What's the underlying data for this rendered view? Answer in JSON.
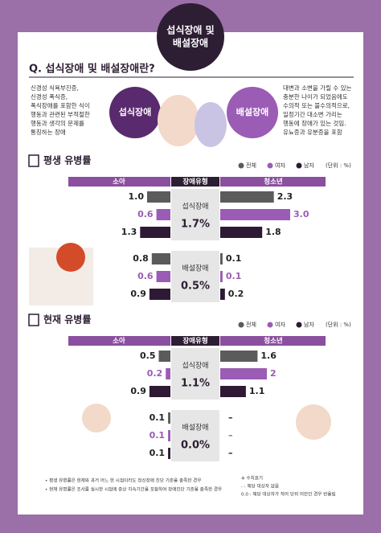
{
  "badge": {
    "lines": [
      "섭식장애 및",
      "배설장애"
    ]
  },
  "intro": {
    "question": "Q. 섭식장애 및 배설장애란?",
    "eating_label": "섭식장애",
    "eating_text": [
      "신경성 식욕부진증,",
      "신경성 폭식증,",
      "폭식장애를 포함한 식이",
      "행동과 관련된 부적절한",
      "행동과 생각의 문제를",
      "통칭하는 장애"
    ],
    "excretion_label": "배설장애",
    "excretion_text": [
      "대변과 소변을 가릴 수 있는",
      "충분한 나이가 되었음에도",
      "수의적 또는 불수의적으로,",
      "일정기간 대소변 가리는",
      "행동에 장애가 있는 것임.",
      "유뇨증과 유분증을 포함"
    ]
  },
  "legend": {
    "items": [
      {
        "name": "전체",
        "color": "#5b5b5b"
      },
      {
        "name": "여자",
        "color": "#9a5cb4"
      },
      {
        "name": "남자",
        "color": "#2e1a35"
      }
    ],
    "unit": "(단위 : %)"
  },
  "sections": [
    {
      "title": "평생 유병률",
      "header": {
        "child": "소아",
        "type": "장애유형",
        "teen": "청소년"
      },
      "groups": [
        {
          "name": "섭식장애",
          "total": 1.7,
          "total_label": "1.7%",
          "child": {
            "values": [
              1.0,
              0.6,
              1.3
            ],
            "value_labels": [
              "1.0",
              "0.6",
              "1.3"
            ]
          },
          "teen": {
            "values": [
              2.3,
              3.0,
              1.8
            ],
            "value_labels": [
              "2.3",
              "3.0",
              "1.8"
            ]
          }
        },
        {
          "name": "배설장애",
          "total": 0.5,
          "total_label": "0.5%",
          "child": {
            "values": [
              0.8,
              0.6,
              0.9
            ]
          },
          "teen": {
            "values": [
              0.1,
              0.1,
              0.2
            ]
          }
        }
      ]
    },
    {
      "title": "현재 유병률",
      "header": {
        "child": "소아",
        "type": "장애유형",
        "teen": "청소년"
      },
      "groups": [
        {
          "name": "섭식장애",
          "total": 1.1,
          "total_label": "1.1%",
          "child": {
            "values": [
              0.5,
              0.2,
              0.9
            ]
          },
          "teen": {
            "values": [
              1.6,
              2.0,
              1.1
            ]
          }
        },
        {
          "name": "배설장애",
          "total": 0,
          "total_label": "0.0%",
          "child": {
            "values": [
              0.1,
              0.1,
              0.1
            ]
          },
          "teen": {
            "values": [
              null,
              null,
              null
            ],
            "value_labels": [
              "–",
              "–",
              "–"
            ]
          }
        }
      ]
    }
  ],
  "notes": [
    "• 평생 유병률은 현재와 과거 어느 한 시점이라도 정신장애 진단 기준을 충족한 경우",
    "• 현재 유병률은 조사를 실시한 시점에 증상 지속기간을 포함하여 장애진단 기준을 충족한 경우"
  ],
  "legend_notes": [
    "※ 수치표기",
    "- : 해당 대상자 없음",
    "0.0 : 해당 대상자가 적어 단위 미만인 경우 반올림"
  ]
}
